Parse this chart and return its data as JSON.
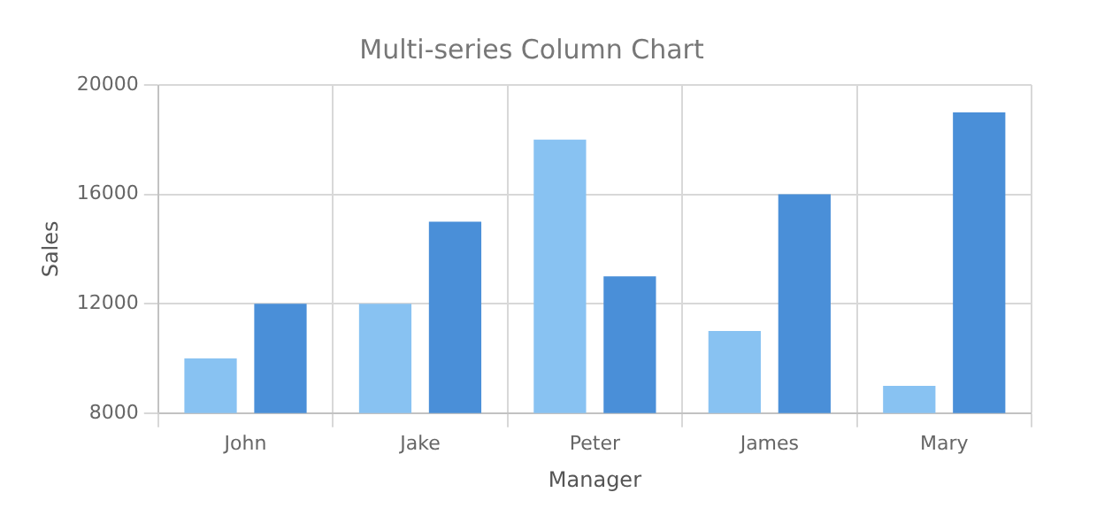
{
  "chart_data": {
    "type": "bar",
    "title": "Multi-series Column Chart",
    "xlabel": "Manager",
    "ylabel": "Sales",
    "categories": [
      "John",
      "Jake",
      "Peter",
      "James",
      "Mary"
    ],
    "series": [
      {
        "color": "#88c2f2",
        "values": [
          10000,
          12000,
          18000,
          11000,
          9000
        ]
      },
      {
        "color": "#4a8fd8",
        "values": [
          12000,
          15000,
          13000,
          16000,
          19000
        ]
      }
    ],
    "ylim": [
      8000,
      20000
    ],
    "yticks": [
      8000,
      12000,
      16000,
      20000
    ],
    "grid": true
  }
}
